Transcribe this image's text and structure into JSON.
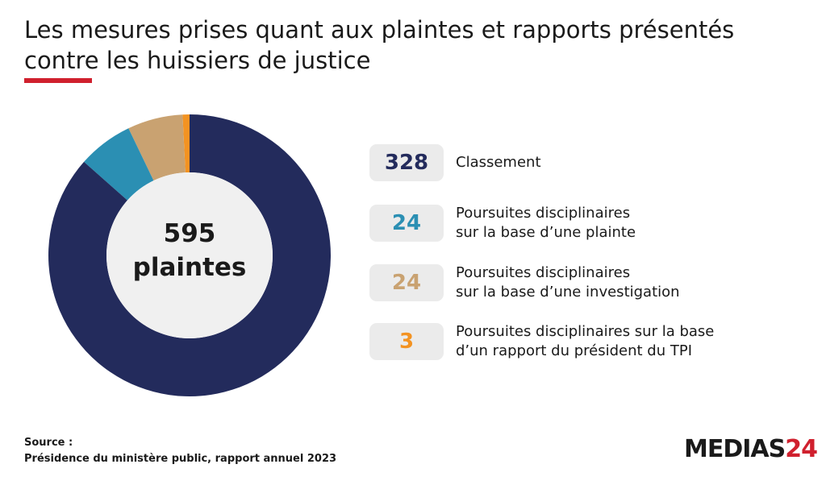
{
  "chart_data": {
    "type": "donut",
    "title": "Les mesures prises quant aux plaintes et rapports présentés\ncontre les huissiers de justice",
    "center_text": [
      "595",
      "plaintes"
    ],
    "categories": [
      "Classement",
      "Poursuites disciplinaires\nsur la base d’une plainte",
      "Poursuites disciplinaires\nsur la base d’une investigation",
      "Poursuites disciplinaires sur la base\nd’un rapport du président du TPI"
    ],
    "values": [
      328,
      24,
      24,
      3
    ],
    "colors": [
      "#232b5c",
      "#2b8fb3",
      "#c9a271",
      "#f39322"
    ],
    "source_label": "Source :",
    "source": "Présidence du ministère public, rapport annuel 2023",
    "logo": [
      "MEDIAS",
      "24"
    ]
  }
}
